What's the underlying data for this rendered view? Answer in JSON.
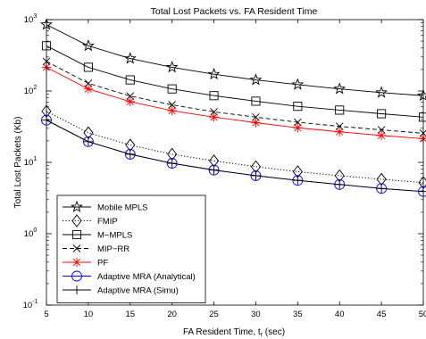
{
  "chart_data": {
    "type": "line",
    "title": "Total Lost Packets vs. FA  Resident Time",
    "xlabel": "FA  Resident Time, t",
    "xlabel_sub": "r",
    "xlabel_suffix": " (sec)",
    "ylabel": "Total Lost Packets (Kb)",
    "x": [
      5,
      10,
      15,
      20,
      25,
      30,
      35,
      40,
      45,
      50
    ],
    "xlim": [
      5,
      50
    ],
    "ylim": [
      0.1,
      1000
    ],
    "yscale": "log",
    "xticks": [
      "5",
      "10",
      "15",
      "20",
      "25",
      "30",
      "35",
      "40",
      "45",
      "50"
    ],
    "yticks": [
      {
        "value": 0.1,
        "base": "10",
        "exp": "-1"
      },
      {
        "value": 1,
        "base": "10",
        "exp": "0"
      },
      {
        "value": 10,
        "base": "10",
        "exp": "1"
      },
      {
        "value": 100,
        "base": "10",
        "exp": "2"
      },
      {
        "value": 1000,
        "base": "10",
        "exp": "3"
      }
    ],
    "grid": false,
    "legend_position": "bottom-left",
    "series": [
      {
        "name": "Mobile MPLS",
        "marker": "star",
        "color": "#000000",
        "dash": "solid",
        "values": [
          850,
          430,
          285,
          215,
          172,
          143,
          123,
          107,
          95,
          86
        ]
      },
      {
        "name": "FMIP",
        "marker": "diamond",
        "color": "#000000",
        "dash": "dotted",
        "values": [
          52,
          26,
          17.5,
          13,
          10.5,
          8.7,
          7.4,
          6.5,
          5.8,
          5.2
        ]
      },
      {
        "name": "M−MPLS",
        "marker": "square",
        "color": "#000000",
        "dash": "solid",
        "values": [
          430,
          215,
          143,
          107,
          86,
          72,
          61,
          54,
          48,
          43
        ]
      },
      {
        "name": "MIP−RR",
        "marker": "x",
        "color": "#000000",
        "dash": "dashed",
        "values": [
          260,
          128,
          85,
          64,
          51,
          43,
          36.5,
          32,
          28.5,
          25.6
        ]
      },
      {
        "name": "PF",
        "marker": "asterisk",
        "color": "#ff0000",
        "dash": "solid",
        "values": [
          215,
          107,
          71,
          53,
          43,
          36,
          30.5,
          26.8,
          23.8,
          21.5
        ]
      },
      {
        "name": "Adaptive MRA (Analytical)",
        "marker": "circle",
        "color": "#0000ff",
        "dash": "solid",
        "values": [
          39,
          19.5,
          13,
          9.7,
          7.8,
          6.5,
          5.6,
          4.9,
          4.3,
          3.9
        ]
      },
      {
        "name": "Adaptive MRA (Simu)",
        "marker": "plus",
        "color": "#000000",
        "dash": "solid",
        "values": [
          39,
          19.5,
          13,
          9.7,
          7.8,
          6.5,
          5.6,
          4.9,
          4.3,
          3.9
        ]
      }
    ]
  }
}
